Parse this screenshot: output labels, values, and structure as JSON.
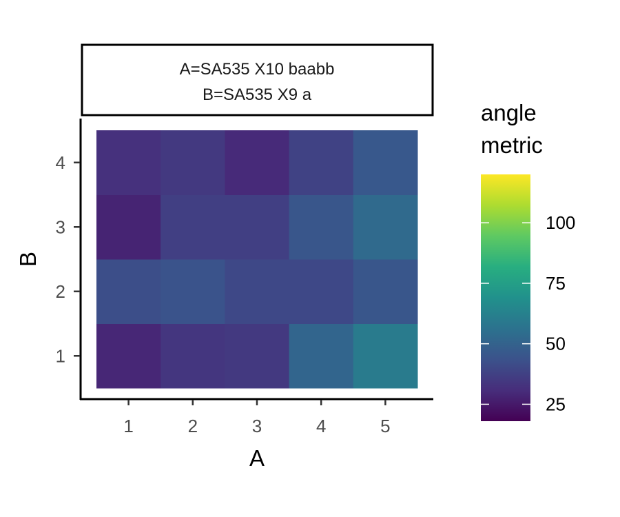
{
  "chart_data": {
    "type": "heatmap",
    "strip": [
      "A=SA535 X10 baabb",
      "B=SA535 X9 a"
    ],
    "xlabel": "A",
    "ylabel": "B",
    "x": [
      1,
      2,
      3,
      4,
      5
    ],
    "y": [
      1,
      2,
      3,
      4
    ],
    "values": [
      [
        29,
        34,
        35,
        51,
        60
      ],
      [
        42,
        44,
        40,
        40,
        45
      ],
      [
        28,
        37,
        37,
        45,
        53
      ],
      [
        32,
        35,
        30,
        38,
        46
      ]
    ],
    "colorbar": {
      "title": "angle\nmetric",
      "range": [
        18,
        120
      ],
      "ticks": [
        25,
        50,
        75,
        100
      ],
      "palette": "viridis"
    },
    "grid": false,
    "legend_position": "right"
  }
}
